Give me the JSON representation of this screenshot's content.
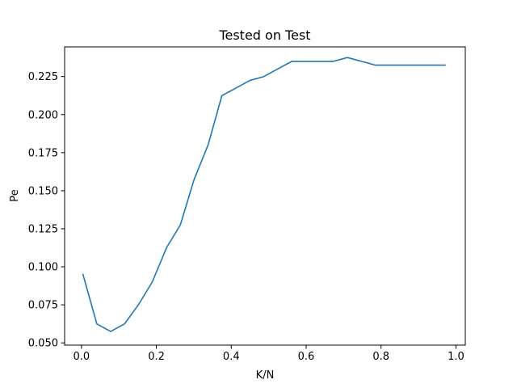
{
  "chart_data": {
    "type": "line",
    "title": "Tested on Test",
    "xlabel": "K/N",
    "ylabel": "Pe",
    "xlim": [
      -0.045,
      1.025
    ],
    "ylim": [
      0.0485,
      0.2445
    ],
    "xticks": [
      0.0,
      0.2,
      0.4,
      0.6,
      0.8,
      1.0
    ],
    "xtick_labels": [
      "0.0",
      "0.2",
      "0.4",
      "0.6",
      "0.8",
      "1.0"
    ],
    "yticks": [
      0.05,
      0.075,
      0.1,
      0.125,
      0.15,
      0.175,
      0.2,
      0.225
    ],
    "ytick_labels": [
      "0.050",
      "0.075",
      "0.100",
      "0.125",
      "0.150",
      "0.175",
      "0.200",
      "0.225"
    ],
    "grid": false,
    "legend": "none",
    "series": [
      {
        "color": "#1f77b4",
        "x": [
          0.004,
          0.041,
          0.078,
          0.115,
          0.152,
          0.189,
          0.227,
          0.264,
          0.301,
          0.338,
          0.375,
          0.413,
          0.45,
          0.487,
          0.524,
          0.562,
          0.599,
          0.636,
          0.673,
          0.71,
          0.748,
          0.785,
          0.822,
          0.859,
          0.896,
          0.934,
          0.971
        ],
        "y": [
          0.095,
          0.0625,
          0.0575,
          0.0625,
          0.075,
          0.09,
          0.1125,
          0.1275,
          0.1575,
          0.18,
          0.2125,
          0.2175,
          0.2225,
          0.225,
          0.23,
          0.235,
          0.235,
          0.235,
          0.235,
          0.2375,
          0.235,
          0.2325,
          0.2325,
          0.2325,
          0.2325,
          0.2325,
          0.2325
        ]
      }
    ]
  }
}
